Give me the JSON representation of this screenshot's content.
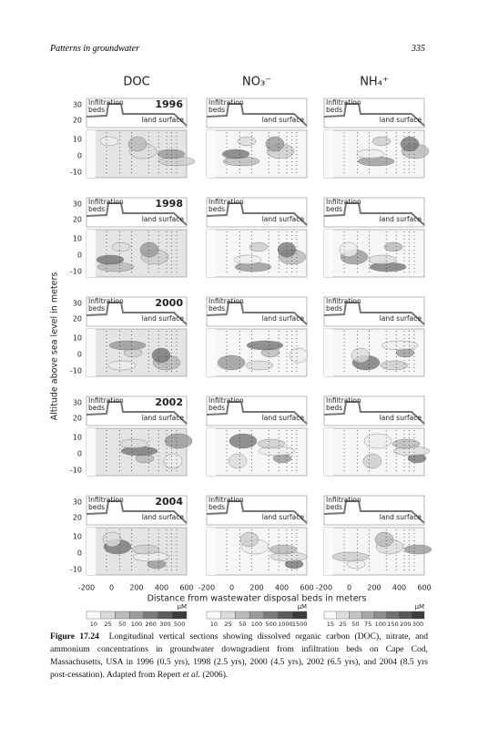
{
  "header": {
    "running_title": "Patterns in groundwater",
    "page_number": "335"
  },
  "figure": {
    "columns": [
      "DOC",
      "NO₃⁻",
      "NH₄⁺"
    ],
    "years": [
      "1996",
      "1998",
      "2000",
      "2002",
      "2004"
    ],
    "infiltration_label": [
      "Infiltration",
      "beds"
    ],
    "land_surface_label": "land surface",
    "y_ticks_upper": [
      "30",
      "20"
    ],
    "y_ticks_lower": [
      "10",
      "0",
      "-10"
    ],
    "x_ticks": [
      "-200",
      "0",
      "200",
      "400",
      "600"
    ],
    "x_label": "Distance from wastewater disposal beds in meters",
    "y_label": "Altitude above sea level in meters",
    "colorbars": [
      {
        "unit": "μM",
        "ticks": [
          "10",
          "25",
          "50",
          "100",
          "200",
          "300",
          "500"
        ]
      },
      {
        "unit": "μM",
        "ticks": [
          "10",
          "25",
          "50",
          "100",
          "500",
          "1000",
          "1500"
        ]
      },
      {
        "unit": "μM",
        "ticks": [
          "15",
          "25",
          "50",
          "75",
          "100",
          "150",
          "200",
          "300"
        ]
      }
    ]
  },
  "caption": {
    "label": "Figure 17.24",
    "text": "Longitudinal vertical sections showing dissolved organic carbon (DOC), nitrate, and ammonium concentrations in groundwater downgradient from infiltration beds on Cape Cod, Massachusetts, USA in 1996 (0.5 yrs), 1998 (2.5 yrs), 2000 (4.5 yrs), 2002 (6.5 yrs), and 2004 (8.5 yrs post-cessation). Adapted from Repert ",
    "citation": "et al.",
    "text_end": " (2006)."
  }
}
